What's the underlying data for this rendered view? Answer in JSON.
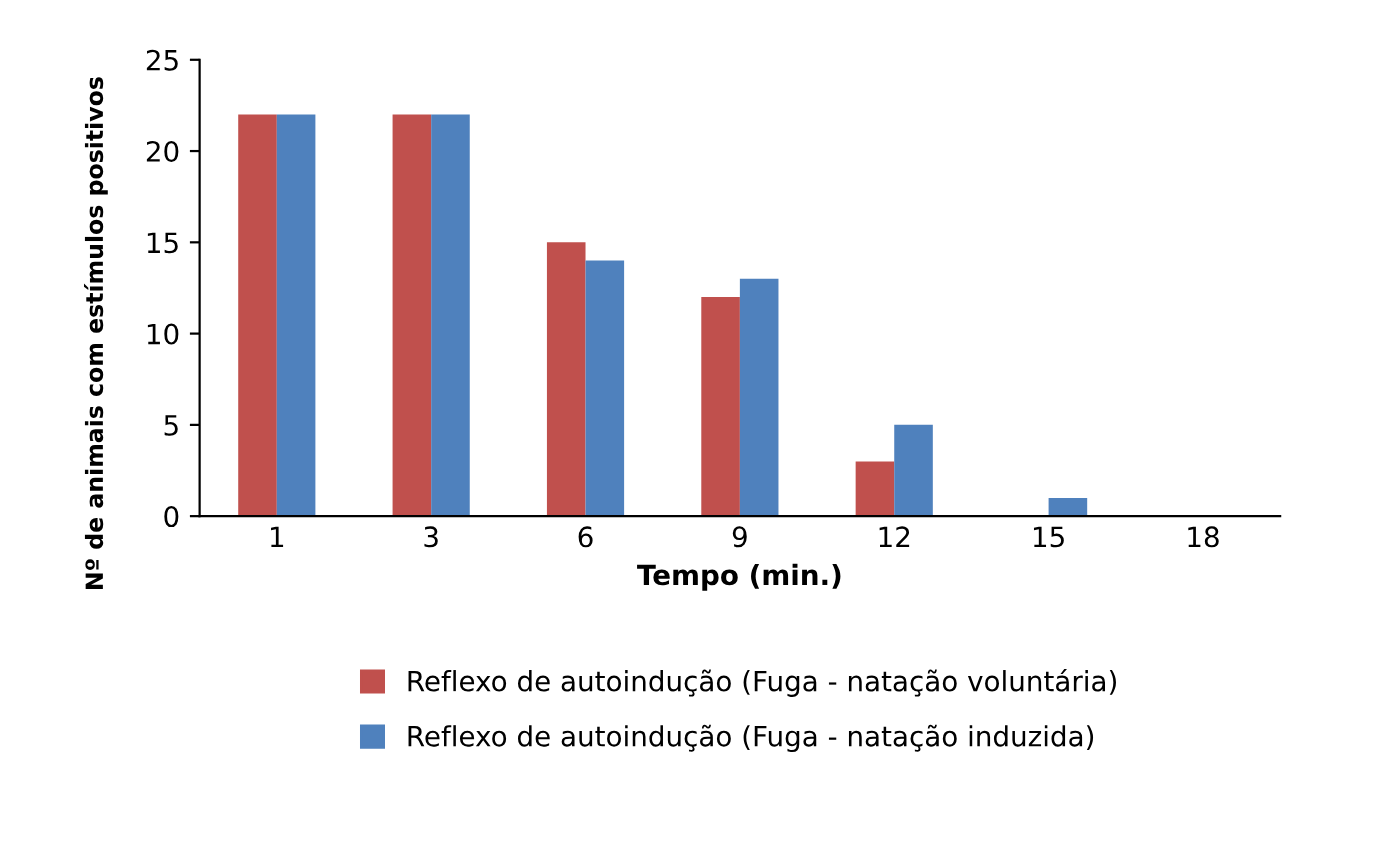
{
  "chart_data": {
    "type": "bar",
    "xlabel": "Tempo (min.)",
    "ylabel": "Nº de animais com estímulos positivos",
    "categories": [
      "1",
      "3",
      "6",
      "9",
      "12",
      "15",
      "18"
    ],
    "series": [
      {
        "name": "Reflexo de autoindução (Fuga - natação voluntária)",
        "color": "#c0504d",
        "values": [
          22,
          22,
          15,
          12,
          3,
          0,
          0
        ]
      },
      {
        "name": "Reflexo de autoindução (Fuga - natação induzida)",
        "color": "#4f81bd",
        "values": [
          22,
          22,
          14,
          13,
          5,
          1,
          0
        ]
      }
    ],
    "ylim": [
      0,
      25
    ],
    "yticks": [
      0,
      5,
      10,
      15,
      20,
      25
    ],
    "grid": false,
    "legend": "bottom"
  }
}
